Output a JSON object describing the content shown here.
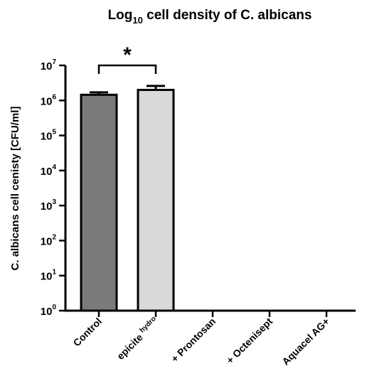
{
  "chart_data": {
    "type": "bar",
    "title": {
      "prefix": "Log",
      "subscript": "10",
      "suffix": " cell density of C. albicans"
    },
    "ylabel": "C. albicans cell cenisty [CFU/ml]",
    "yscale": "log",
    "ylim": [
      1,
      10000000
    ],
    "yticks": [
      {
        "base": "10",
        "exp": "0",
        "value": 1
      },
      {
        "base": "10",
        "exp": "1",
        "value": 10
      },
      {
        "base": "10",
        "exp": "2",
        "value": 100
      },
      {
        "base": "10",
        "exp": "3",
        "value": 1000
      },
      {
        "base": "10",
        "exp": "4",
        "value": 10000
      },
      {
        "base": "10",
        "exp": "5",
        "value": 100000
      },
      {
        "base": "10",
        "exp": "6",
        "value": 1000000
      },
      {
        "base": "10",
        "exp": "7",
        "value": 10000000
      }
    ],
    "categories": [
      {
        "label": "Control",
        "sup": ""
      },
      {
        "label": "epicite ",
        "sup": "hydro"
      },
      {
        "label": "+ Prontosan",
        "sup": ""
      },
      {
        "label": "+ Octenisept",
        "sup": ""
      },
      {
        "label": "Aquacel AG+",
        "sup": ""
      }
    ],
    "values": [
      1450000,
      2000000,
      1,
      1,
      1
    ],
    "error_upper": [
      1700000,
      2600000,
      null,
      null,
      null
    ],
    "bar_colors": [
      "#7a7a7a",
      "#d9d9d9",
      "#d9d9d9",
      "#d9d9d9",
      "#d9d9d9"
    ],
    "significance": {
      "from": 0,
      "to": 1,
      "label": "*"
    },
    "grid": false,
    "legend": "none"
  }
}
